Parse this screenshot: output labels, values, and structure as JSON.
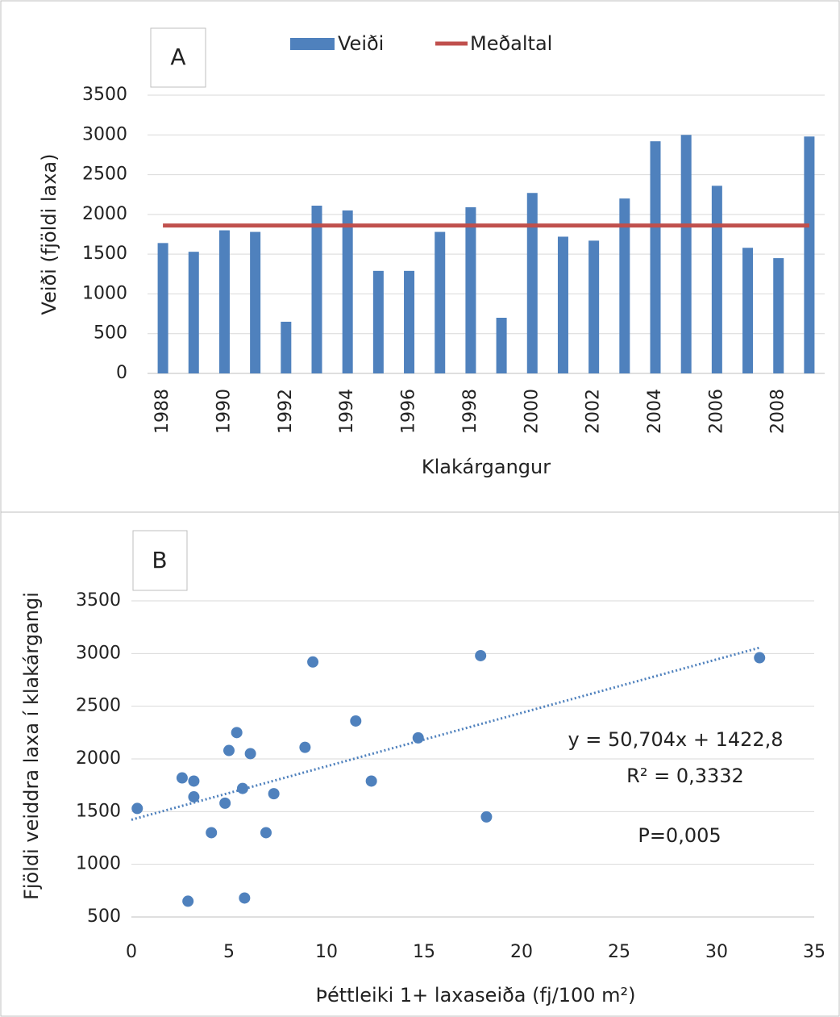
{
  "chart_data": [
    {
      "type": "bar",
      "panel": "A",
      "xlabel": "Klakárgangur",
      "ylabel": "Veiði (fjöldi laxa)",
      "categories": [
        "1988",
        null,
        "1990",
        null,
        "1992",
        null,
        "1994",
        null,
        "1996",
        null,
        "1998",
        null,
        "2000",
        null,
        "2002",
        null,
        "2004",
        null,
        "2006",
        null,
        "2008",
        null
      ],
      "series": [
        {
          "name": "Veiði",
          "type": "bar",
          "color": "#4f81bd",
          "values": [
            1640,
            1530,
            1800,
            1780,
            650,
            2110,
            2050,
            1290,
            1290,
            1780,
            2090,
            700,
            2270,
            1720,
            1670,
            2200,
            2920,
            3000,
            2360,
            1580,
            1450,
            2980
          ]
        },
        {
          "name": "Meðaltal",
          "type": "line",
          "color": "#c0504d",
          "values": [
            1860,
            1860,
            1860,
            1860,
            1860,
            1860,
            1860,
            1860,
            1860,
            1860,
            1860,
            1860,
            1860,
            1860,
            1860,
            1860,
            1860,
            1860,
            1860,
            1860,
            1860,
            1860
          ]
        }
      ],
      "ylim": [
        0,
        3500
      ],
      "yticks": [
        0,
        500,
        1000,
        1500,
        2000,
        2500,
        3000,
        3500
      ],
      "grid": true,
      "legend": "top"
    },
    {
      "type": "scatter",
      "panel": "B",
      "xlabel": "Þéttleiki 1+ laxaseiða (fj/100 m²)",
      "ylabel": "Fjöldi veiddra laxa í klakárgangi",
      "x": [
        0.3,
        2.6,
        3.2,
        3.2,
        2.9,
        4.1,
        4.8,
        5.0,
        5.4,
        5.7,
        5.8,
        6.1,
        6.9,
        7.3,
        8.9,
        9.3,
        11.5,
        12.3,
        14.7,
        17.9,
        18.2,
        32.2
      ],
      "values": [
        1530,
        1820,
        1790,
        1640,
        650,
        1300,
        1580,
        2080,
        2250,
        1720,
        680,
        2050,
        1300,
        1670,
        2110,
        2920,
        2360,
        1790,
        2200,
        2980,
        1450,
        2960
      ],
      "color": "#4f81bd",
      "trend": {
        "slope": 50.704,
        "intercept": 1422.8,
        "label": "y = 50,704x + 1422,8"
      },
      "annotations": [
        "R² = 0,3332",
        "P=0,005"
      ],
      "xlim": [
        0,
        35
      ],
      "xticks": [
        0,
        5,
        10,
        15,
        20,
        25,
        30,
        35
      ],
      "ylim": [
        500,
        3500
      ],
      "yticks": [
        500,
        1000,
        1500,
        2000,
        2500,
        3000,
        3500
      ],
      "grid": true
    }
  ]
}
